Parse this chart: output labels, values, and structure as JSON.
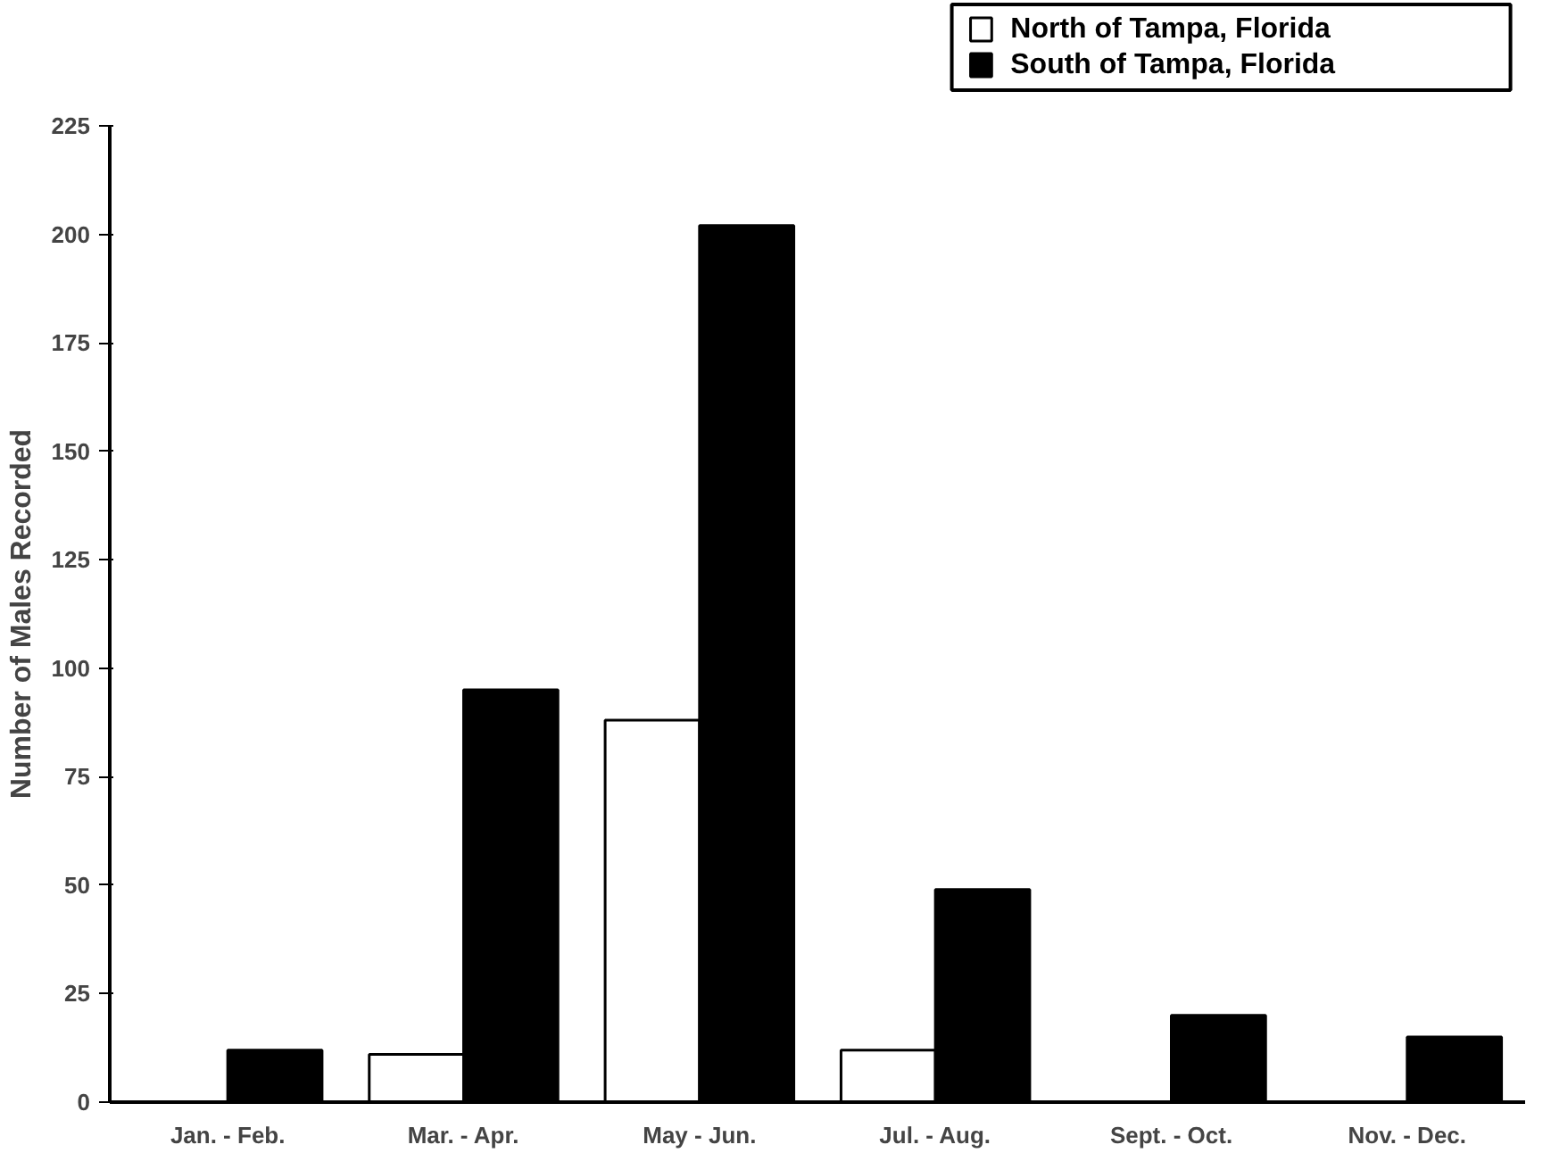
{
  "chart_data": {
    "type": "bar",
    "ylabel": "Number of Males Recorded",
    "categories": [
      "Jan. - Feb.",
      "Mar. - Apr.",
      "May - Jun.",
      "Jul. - Aug.",
      "Sept. - Oct.",
      "Nov. - Dec."
    ],
    "series": [
      {
        "name": "North of Tampa, Florida",
        "color": "#ffffff",
        "values": [
          0,
          11,
          88,
          12,
          0,
          0
        ]
      },
      {
        "name": "South of Tampa, Florida",
        "color": "#000000",
        "values": [
          12,
          95,
          202,
          49,
          20,
          15
        ]
      }
    ],
    "ylim": [
      0,
      225
    ],
    "yticks": [
      0,
      25,
      50,
      75,
      100,
      125,
      150,
      175,
      200,
      225
    ],
    "grid": false,
    "legend": "top right"
  }
}
